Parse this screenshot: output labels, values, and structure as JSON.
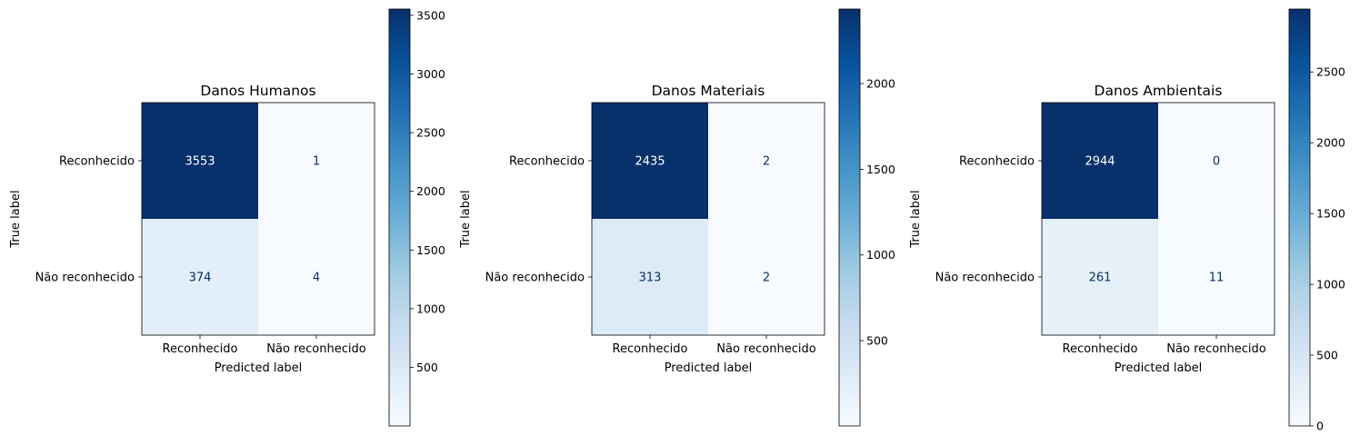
{
  "chart_data": [
    {
      "type": "heatmap",
      "title": "Danos Humanos",
      "xlabel": "Predicted label",
      "ylabel": "True label",
      "x_categories": [
        "Reconhecido",
        "Não reconhecido"
      ],
      "y_categories": [
        "Reconhecido",
        "Não reconhecido"
      ],
      "values": [
        [
          3553,
          1
        ],
        [
          374,
          4
        ]
      ],
      "colormap": "Blues",
      "colorbar": {
        "min": 1,
        "max": 3553,
        "ticks": [
          500,
          1000,
          1500,
          2000,
          2500,
          3000,
          3500
        ]
      }
    },
    {
      "type": "heatmap",
      "title": "Danos Materiais",
      "xlabel": "Predicted label",
      "ylabel": "True label",
      "x_categories": [
        "Reconhecido",
        "Não reconhecido"
      ],
      "y_categories": [
        "Reconhecido",
        "Não reconhecido"
      ],
      "values": [
        [
          2435,
          2
        ],
        [
          313,
          2
        ]
      ],
      "colormap": "Blues",
      "colorbar": {
        "min": 2,
        "max": 2435,
        "ticks": [
          500,
          1000,
          1500,
          2000
        ]
      }
    },
    {
      "type": "heatmap",
      "title": "Danos Ambientais",
      "xlabel": "Predicted label",
      "ylabel": "True label",
      "x_categories": [
        "Reconhecido",
        "Não reconhecido"
      ],
      "y_categories": [
        "Reconhecido",
        "Não reconhecido"
      ],
      "values": [
        [
          2944,
          0
        ],
        [
          261,
          11
        ]
      ],
      "colormap": "Blues",
      "colorbar": {
        "min": 0,
        "max": 2944,
        "ticks": [
          0,
          500,
          1000,
          1500,
          2000,
          2500
        ]
      }
    }
  ]
}
